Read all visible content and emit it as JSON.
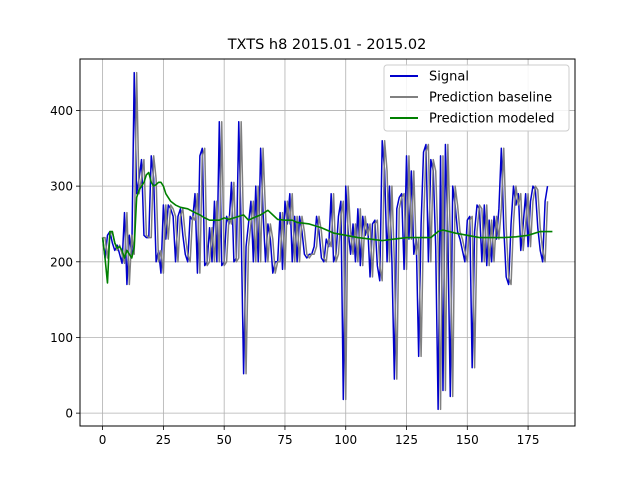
{
  "chart_data": {
    "type": "line",
    "title": "TXTS h8 2015.01 - 2015.02",
    "xlabel": "",
    "ylabel": "",
    "xlim": [
      -9.3,
      194.3
    ],
    "ylim": [
      -17,
      468
    ],
    "x_ticks": [
      0,
      25,
      50,
      75,
      100,
      125,
      150,
      175
    ],
    "y_ticks": [
      0,
      100,
      200,
      300,
      400
    ],
    "grid": true,
    "legend_position": "upper right",
    "series": [
      {
        "name": "Signal",
        "color": "#0000cc",
        "values": [
          232,
          205,
          235,
          240,
          225,
          215,
          222,
          210,
          198,
          265,
          170,
          235,
          210,
          450,
          290,
          310,
          335,
          235,
          232,
          232,
          340,
          310,
          200,
          215,
          185,
          275,
          230,
          275,
          270,
          260,
          200,
          260,
          270,
          235,
          210,
          200,
          260,
          255,
          290,
          185,
          340,
          350,
          195,
          200,
          245,
          200,
          280,
          200,
          385,
          195,
          200,
          260,
          250,
          305,
          200,
          205,
          385,
          240,
          52,
          220,
          250,
          280,
          200,
          300,
          200,
          350,
          265,
          200,
          250,
          230,
          185,
          200,
          200,
          265,
          190,
          280,
          250,
          290,
          200,
          260,
          200,
          260,
          240,
          210,
          205,
          210,
          210,
          220,
          260,
          240,
          205,
          200,
          230,
          220,
          290,
          200,
          210,
          260,
          280,
          18,
          300,
          240,
          210,
          250,
          200,
          270,
          195,
          260,
          235,
          250,
          180,
          250,
          255,
          195,
          175,
          360,
          320,
          200,
          300,
          200,
          45,
          270,
          285,
          290,
          190,
          340,
          230,
          320,
          210,
          230,
          75,
          250,
          345,
          355,
          200,
          335,
          320,
          220,
          5,
          340,
          30,
          355,
          235,
          22,
          300,
          275,
          240,
          230,
          215,
          200,
          255,
          260,
          60,
          240,
          275,
          270,
          200,
          275,
          195,
          255,
          200,
          260,
          230,
          270,
          350,
          245,
          180,
          170,
          250,
          300,
          275,
          290,
          215,
          250,
          290,
          220,
          280,
          300,
          295,
          245,
          215,
          200,
          280,
          300
        ]
      },
      {
        "name": "Prediction baseline",
        "color": "#808080",
        "values": [
          232,
          232,
          205,
          235,
          240,
          225,
          215,
          222,
          210,
          198,
          265,
          170,
          235,
          210,
          450,
          290,
          310,
          335,
          235,
          232,
          232,
          340,
          310,
          200,
          215,
          185,
          275,
          230,
          275,
          270,
          260,
          200,
          260,
          270,
          235,
          210,
          200,
          260,
          255,
          290,
          185,
          340,
          350,
          195,
          200,
          245,
          200,
          280,
          200,
          385,
          195,
          200,
          260,
          250,
          305,
          200,
          205,
          385,
          240,
          52,
          220,
          250,
          280,
          200,
          300,
          200,
          350,
          265,
          200,
          250,
          230,
          185,
          200,
          200,
          265,
          190,
          280,
          250,
          290,
          200,
          260,
          200,
          260,
          240,
          210,
          205,
          210,
          210,
          220,
          260,
          240,
          205,
          200,
          230,
          220,
          290,
          200,
          210,
          260,
          280,
          18,
          300,
          240,
          210,
          250,
          200,
          270,
          195,
          260,
          235,
          250,
          180,
          250,
          255,
          195,
          175,
          360,
          320,
          200,
          300,
          200,
          45,
          270,
          285,
          290,
          190,
          340,
          230,
          320,
          210,
          230,
          75,
          250,
          345,
          355,
          200,
          335,
          320,
          220,
          5,
          340,
          30,
          355,
          235,
          22,
          300,
          275,
          240,
          230,
          215,
          200,
          255,
          260,
          60,
          240,
          275,
          270,
          200,
          275,
          195,
          255,
          200,
          260,
          230,
          270,
          350,
          245,
          180,
          170,
          250,
          300,
          275,
          290,
          215,
          250,
          290,
          220,
          280,
          300,
          295,
          245,
          215,
          200,
          280
        ]
      },
      {
        "name": "Prediction modeled",
        "color": "#008000",
        "x": [
          0,
          1,
          2,
          3,
          4,
          5,
          6,
          7,
          8,
          9,
          10,
          11,
          12,
          13,
          14,
          15,
          16,
          17,
          18,
          19,
          20,
          21,
          22,
          23,
          24,
          25,
          26,
          28,
          30,
          32,
          35,
          38,
          40,
          42,
          44,
          46,
          48,
          50,
          52,
          54,
          56,
          58,
          60,
          62,
          65,
          68,
          70,
          72,
          75,
          78,
          80,
          85,
          90,
          95,
          100,
          105,
          110,
          115,
          120,
          125,
          130,
          135,
          138,
          140,
          145,
          150,
          155,
          160,
          165,
          170,
          175,
          180,
          185
        ],
        "values": [
          232,
          205,
          172,
          240,
          240,
          225,
          218,
          220,
          215,
          205,
          215,
          210,
          205,
          220,
          285,
          295,
          300,
          305,
          315,
          318,
          305,
          300,
          302,
          305,
          305,
          300,
          290,
          280,
          275,
          272,
          270,
          265,
          262,
          258,
          255,
          255,
          255,
          258,
          256,
          258,
          260,
          262,
          255,
          258,
          262,
          268,
          262,
          256,
          255,
          255,
          252,
          250,
          245,
          238,
          235,
          232,
          230,
          228,
          230,
          232,
          232,
          232,
          240,
          242,
          238,
          235,
          232,
          232,
          232,
          233,
          235,
          240,
          240
        ]
      }
    ]
  }
}
